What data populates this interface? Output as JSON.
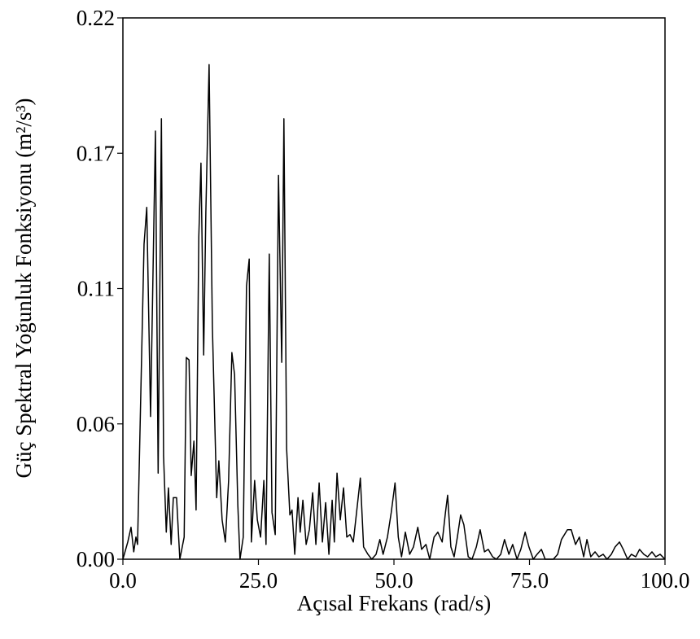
{
  "chart_data": {
    "type": "line",
    "xlabel": "Açısal Frekans (rad/s)",
    "ylabel": "Güç Spektral Yoğunluk Fonksiyonu (m²/s³)",
    "xlim": [
      0,
      100
    ],
    "ylim": [
      0,
      0.22
    ],
    "xticks": [
      {
        "value": 0,
        "label": "0.0"
      },
      {
        "value": 25,
        "label": "25.0"
      },
      {
        "value": 50,
        "label": "50.0"
      },
      {
        "value": 75,
        "label": "75.0"
      },
      {
        "value": 100,
        "label": "100.0"
      }
    ],
    "yticks": [
      {
        "value": 0,
        "label": "0.00"
      },
      {
        "value": 0.055,
        "label": "0.06"
      },
      {
        "value": 0.11,
        "label": "0.11"
      },
      {
        "value": 0.165,
        "label": "0.17"
      },
      {
        "value": 0.22,
        "label": "0.22"
      }
    ],
    "grid": false,
    "x": [
      0,
      0.9,
      1.5,
      2,
      2.4,
      2.7,
      3.9,
      4.4,
      5.1,
      6.0,
      6.5,
      7.1,
      7.5,
      8.0,
      8.4,
      8.9,
      9.3,
      9.9,
      10.5,
      11.3,
      11.7,
      12.2,
      12.6,
      13.1,
      13.5,
      14.0,
      14.4,
      14.9,
      15.3,
      15.9,
      16.5,
      17.3,
      17.7,
      18.3,
      18.9,
      19.5,
      20.1,
      20.6,
      21.2,
      21.6,
      22.2,
      22.8,
      23.3,
      23.7,
      24.3,
      24.8,
      25.4,
      26.0,
      26.4,
      27.0,
      27.5,
      28.1,
      28.7,
      29.3,
      29.7,
      30.2,
      30.8,
      31.2,
      31.7,
      32.3,
      32.7,
      33.2,
      33.8,
      34.4,
      35.0,
      35.6,
      36.2,
      36.8,
      37.4,
      38.0,
      38.6,
      39.0,
      39.5,
      40.1,
      40.7,
      41.3,
      41.9,
      42.5,
      43.1,
      43.8,
      44.4,
      45.2,
      45.9,
      46.7,
      47.4,
      48.0,
      48.8,
      49.5,
      50.2,
      50.8,
      51.4,
      52.1,
      52.9,
      53.6,
      54.4,
      55.1,
      55.9,
      56.6,
      57.4,
      58.1,
      58.9,
      59.5,
      59.9,
      60.5,
      61.1,
      61.7,
      62.3,
      62.9,
      63.7,
      64.4,
      65.2,
      65.9,
      66.7,
      67.4,
      68.2,
      68.9,
      69.7,
      70.4,
      71.2,
      71.9,
      72.7,
      73.4,
      74.2,
      74.9,
      75.7,
      76.4,
      77.2,
      77.9,
      78.7,
      79.4,
      80.2,
      80.9,
      82.0,
      82.7,
      83.5,
      84.2,
      85.0,
      85.6,
      86.3,
      87.1,
      87.8,
      88.6,
      89.3,
      90.1,
      90.8,
      91.6,
      92.3,
      93.1,
      93.8,
      94.6,
      95.3,
      96.1,
      96.8,
      97.6,
      98.3,
      99.1,
      100
    ],
    "series": [
      {
        "color": "#000000",
        "values": [
          0,
          0.007,
          0.013,
          0.003,
          0.009,
          0.006,
          0.128,
          0.143,
          0.058,
          0.174,
          0.035,
          0.179,
          0.042,
          0.011,
          0.029,
          0.006,
          0.025,
          0.025,
          0,
          0.009,
          0.082,
          0.081,
          0.034,
          0.048,
          0.02,
          0.131,
          0.161,
          0.083,
          0.141,
          0.201,
          0.095,
          0.025,
          0.04,
          0.016,
          0.007,
          0.032,
          0.084,
          0.075,
          0.022,
          0,
          0.009,
          0.111,
          0.122,
          0.007,
          0.032,
          0.016,
          0.009,
          0.032,
          0.006,
          0.124,
          0.019,
          0.01,
          0.156,
          0.08,
          0.179,
          0.045,
          0.018,
          0.02,
          0.002,
          0.025,
          0.011,
          0.024,
          0.006,
          0.012,
          0.027,
          0.006,
          0.031,
          0.007,
          0.023,
          0.002,
          0.024,
          0.007,
          0.035,
          0.016,
          0.029,
          0.009,
          0.01,
          0.007,
          0.019,
          0.033,
          0.005,
          0.002,
          0,
          0.002,
          0.008,
          0.002,
          0.009,
          0.019,
          0.031,
          0.009,
          0.001,
          0.011,
          0.002,
          0.005,
          0.013,
          0.004,
          0.006,
          0,
          0.009,
          0.011,
          0.007,
          0.019,
          0.026,
          0.005,
          0.001,
          0.009,
          0.018,
          0.014,
          0.001,
          0,
          0.005,
          0.012,
          0.003,
          0.004,
          0.001,
          0,
          0.002,
          0.008,
          0.002,
          0.006,
          0,
          0.004,
          0.011,
          0.005,
          0,
          0.002,
          0.004,
          0,
          0,
          0,
          0.002,
          0.008,
          0.012,
          0.012,
          0.006,
          0.009,
          0.001,
          0.008,
          0.001,
          0.003,
          0.001,
          0.002,
          0,
          0.002,
          0.005,
          0.007,
          0.004,
          0,
          0.002,
          0.001,
          0.004,
          0.002,
          0.001,
          0.003,
          0.001,
          0.002,
          0
        ]
      }
    ]
  }
}
